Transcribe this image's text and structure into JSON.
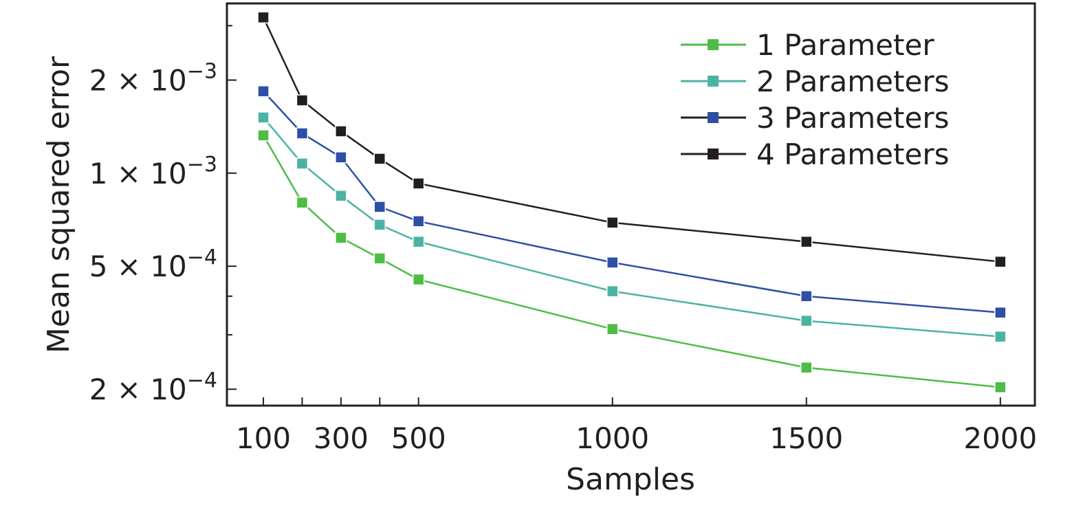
{
  "chart_data": {
    "type": "line",
    "title": "",
    "xlabel": "Samples",
    "ylabel": "Mean squared error",
    "x": [
      100,
      200,
      300,
      400,
      500,
      1000,
      1500,
      2000
    ],
    "xticks": [
      100,
      200,
      300,
      400,
      500,
      1000,
      1500,
      2000
    ],
    "xtick_labels": [
      "100",
      "",
      "300",
      "",
      "500",
      "1000",
      "1500",
      "2000"
    ],
    "xlim": [
      6,
      2089
    ],
    "yscale": "log",
    "ylim": [
      0.000177,
      0.00354
    ],
    "yticks": [
      0.0002,
      0.0005,
      0.001,
      0.002
    ],
    "ytick_labels": [
      {
        "mant": "2",
        "exp": "−4"
      },
      {
        "mant": "5",
        "exp": "−4"
      },
      {
        "mant": "1",
        "exp": "−3"
      },
      {
        "mant": "2",
        "exp": "−3"
      }
    ],
    "yminor_ticks": [
      0.0003,
      0.0004,
      0.003
    ],
    "grid": false,
    "legend_placement": "top-right",
    "series": [
      {
        "name": "1 Parameter",
        "color": "#4dbd45",
        "legend_line_color": "#4dbd45",
        "values": [
          0.001325,
          0.000803,
          0.000618,
          0.00053,
          0.000453,
          0.000313,
          0.000235,
          0.000203
        ]
      },
      {
        "name": "2 Parameters",
        "color": "#4bb3a3",
        "legend_line_color": "#4bb3a3",
        "values": [
          0.001514,
          0.001074,
          0.000845,
          0.000681,
          0.0006,
          0.000415,
          0.000333,
          0.000296
        ]
      },
      {
        "name": "3 Parameters",
        "color": "#2e4fa6",
        "legend_line_color": "#231f20",
        "values": [
          0.00184,
          0.001345,
          0.001125,
          0.000778,
          0.000699,
          0.000514,
          0.0004,
          0.000354
        ]
      },
      {
        "name": "4 Parameters",
        "color": "#231f20",
        "legend_line_color": "#231f20",
        "values": [
          0.00319,
          0.00172,
          0.001366,
          0.001113,
          0.000926,
          0.000692,
          0.0006,
          0.000517
        ]
      }
    ]
  }
}
